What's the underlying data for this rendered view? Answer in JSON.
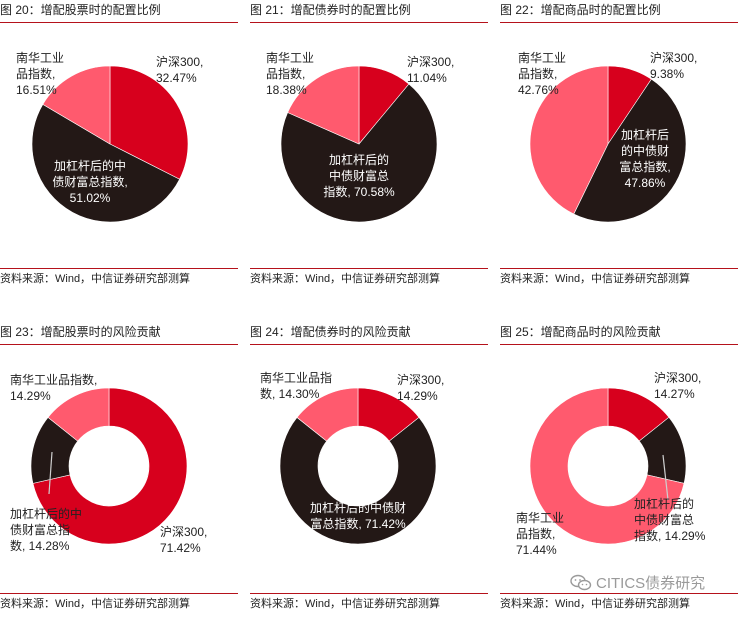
{
  "colors": {
    "hs300": "#d7001d",
    "bond": "#231816",
    "commodity": "#ff5a6e",
    "rule": "#b5121b"
  },
  "watermark": {
    "text": "CITICS债券研究"
  },
  "chart_data": [
    {
      "type": "pie",
      "title": "图 20：增配股票时的配置比例",
      "source": "资料来源：Wind，中信证券研究部测算",
      "slices": [
        {
          "name": "沪深300",
          "value": 32.47,
          "label_lines": [
            "沪深300,",
            "32.47%"
          ],
          "color_key": "hs300"
        },
        {
          "name": "加杠杆后的中债财富总指数",
          "value": 51.02,
          "label_lines": [
            "加杠杆后的中",
            "债财富总指数,",
            "51.02%"
          ],
          "color_key": "bond"
        },
        {
          "name": "南华工业品指数",
          "value": 16.51,
          "label_lines": [
            "南华工业",
            "品指数,",
            "16.51%"
          ],
          "color_key": "commodity"
        }
      ]
    },
    {
      "type": "pie",
      "title": "图 21：增配债券时的配置比例",
      "source": "资料来源：Wind，中信证券研究部测算",
      "slices": [
        {
          "name": "沪深300",
          "value": 11.04,
          "label_lines": [
            "沪深300,",
            "11.04%"
          ],
          "color_key": "hs300"
        },
        {
          "name": "加杠杆后的中债财富总指数",
          "value": 70.58,
          "label_lines": [
            "加杠杆后的",
            "中债财富总",
            "指数, 70.58%"
          ],
          "color_key": "bond"
        },
        {
          "name": "南华工业品指数",
          "value": 18.38,
          "label_lines": [
            "南华工业",
            "品指数,",
            "18.38%"
          ],
          "color_key": "commodity"
        }
      ]
    },
    {
      "type": "pie",
      "title": "图 22：增配商品时的配置比例",
      "source": "资料来源：Wind，中信证券研究部测算",
      "slices": [
        {
          "name": "沪深300",
          "value": 9.38,
          "label_lines": [
            "沪深300,",
            "9.38%"
          ],
          "color_key": "hs300"
        },
        {
          "name": "加杠杆后的中债财富总指数",
          "value": 47.86,
          "label_lines": [
            "加杠杆后",
            "的中债财",
            "富总指数,",
            "47.86%"
          ],
          "color_key": "bond"
        },
        {
          "name": "南华工业品指数",
          "value": 42.76,
          "label_lines": [
            "南华工业",
            "品指数,",
            "42.76%"
          ],
          "color_key": "commodity"
        }
      ]
    },
    {
      "type": "pie",
      "title": "图 23：增配股票时的风险贡献",
      "source": "资料来源：Wind，中信证券研究部测算",
      "donut": true,
      "slices": [
        {
          "name": "沪深300",
          "value": 71.42,
          "label_lines": [
            "沪深300,",
            "71.42%"
          ],
          "color_key": "hs300"
        },
        {
          "name": "加杠杆后的中债财富总指数",
          "value": 14.28,
          "label_lines": [
            "加杠杆后的中",
            "债财富总指",
            "数, 14.28%"
          ],
          "color_key": "bond"
        },
        {
          "name": "南华工业品指数",
          "value": 14.29,
          "label_lines": [
            "南华工业品指数,",
            "14.29%"
          ],
          "color_key": "commodity"
        }
      ]
    },
    {
      "type": "pie",
      "title": "图 24：增配债券时的风险贡献",
      "source": "资料来源：Wind，中信证券研究部测算",
      "donut": true,
      "slices": [
        {
          "name": "沪深300",
          "value": 14.29,
          "label_lines": [
            "沪深300,",
            "14.29%"
          ],
          "color_key": "hs300"
        },
        {
          "name": "加杠杆后的中债财富总指数",
          "value": 71.42,
          "label_lines": [
            "加杠杆后的中债财",
            "富总指数, 71.42%"
          ],
          "color_key": "bond"
        },
        {
          "name": "南华工业品指数",
          "value": 14.3,
          "label_lines": [
            "南华工业品指",
            "数, 14.30%"
          ],
          "color_key": "commodity"
        }
      ]
    },
    {
      "type": "pie",
      "title": "图 25：增配商品时的风险贡献",
      "source": "资料来源：Wind，中信证券研究部测算",
      "donut": true,
      "slices": [
        {
          "name": "沪深300",
          "value": 14.27,
          "label_lines": [
            "沪深300,",
            "14.27%"
          ],
          "color_key": "hs300"
        },
        {
          "name": "加杠杆后的中债财富总指数",
          "value": 14.29,
          "label_lines": [
            "加杠杆后的",
            "中债财富总",
            "指数, 14.29%"
          ],
          "color_key": "bond"
        },
        {
          "name": "南华工业品指数",
          "value": 71.44,
          "label_lines": [
            "南华工业",
            "品指数,",
            "71.44%"
          ],
          "color_key": "commodity"
        }
      ]
    }
  ]
}
